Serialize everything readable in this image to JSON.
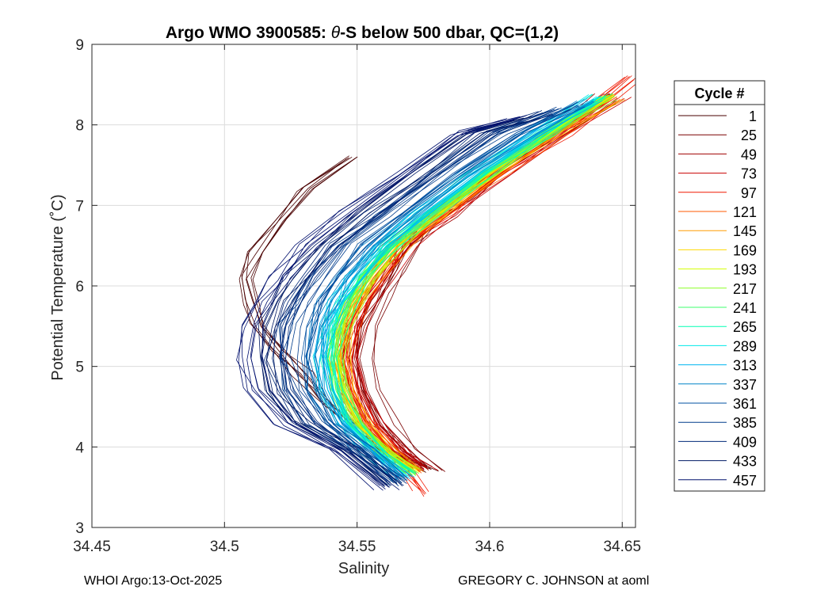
{
  "title_prefix": "Argo WMO 3900585: ",
  "title_theta": "θ",
  "title_suffix": "-S below 500 dbar,  QC=(1,2)",
  "footer_left": "WHOI Argo:13-Oct-2025",
  "footer_right": "GREGORY C. JOHNSON at aoml",
  "chart_data": {
    "type": "line",
    "title": "Argo WMO 3900585: θ-S below 500 dbar,  QC=(1,2)",
    "xlabel": "Salinity",
    "ylabel": "Potential Temperature (˚C)",
    "xlim": [
      34.45,
      34.655
    ],
    "ylim": [
      3,
      9
    ],
    "xticks": [
      34.45,
      34.5,
      34.55,
      34.6,
      34.65
    ],
    "xtick_labels": [
      "34.45",
      "34.5",
      "34.55",
      "34.6",
      "34.65"
    ],
    "yticks": [
      3,
      4,
      5,
      6,
      7,
      8,
      9
    ],
    "ytick_labels": [
      "3",
      "4",
      "5",
      "6",
      "7",
      "8",
      "9"
    ],
    "grid": true,
    "legend_title": "Cycle #",
    "legend_position": "right-outside",
    "series": [
      {
        "name": "1",
        "color": "#4a0000",
        "salinity": [
          34.578,
          34.566,
          34.552,
          34.54,
          34.531,
          34.522,
          34.515,
          34.512,
          34.51,
          34.514,
          34.522,
          34.533,
          34.55
        ],
        "theta": [
          3.72,
          3.9,
          4.2,
          4.55,
          4.9,
          5.2,
          5.5,
          5.8,
          6.1,
          6.4,
          6.8,
          7.2,
          7.6
        ]
      },
      {
        "name": "25",
        "color": "#7a0000",
        "salinity": [
          34.578,
          34.57,
          34.56,
          34.554,
          34.551,
          34.554,
          34.56,
          34.565,
          34.568,
          34.575,
          34.588,
          34.605,
          34.625,
          34.645
        ],
        "theta": [
          3.72,
          3.95,
          4.3,
          4.7,
          5.1,
          5.5,
          5.9,
          6.2,
          6.5,
          6.8,
          7.1,
          7.5,
          7.9,
          8.3
        ]
      },
      {
        "name": "49",
        "color": "#a10000",
        "salinity": [
          34.577,
          34.568,
          34.558,
          34.552,
          34.549,
          34.551,
          34.555,
          34.561,
          34.57,
          34.585,
          34.605,
          34.625,
          34.645
        ],
        "theta": [
          3.73,
          3.95,
          4.3,
          4.7,
          5.1,
          5.5,
          5.8,
          6.1,
          6.5,
          6.9,
          7.4,
          7.9,
          8.35
        ]
      },
      {
        "name": "73",
        "color": "#c80000",
        "salinity": [
          34.576,
          34.566,
          34.556,
          34.55,
          34.548,
          34.55,
          34.554,
          34.56,
          34.57,
          34.585,
          34.605,
          34.627,
          34.648
        ],
        "theta": [
          3.74,
          3.95,
          4.3,
          4.7,
          5.1,
          5.5,
          5.8,
          6.1,
          6.5,
          6.9,
          7.4,
          7.9,
          8.35
        ]
      },
      {
        "name": "97",
        "color": "#f01800",
        "salinity": [
          34.576,
          34.565,
          34.554,
          34.548,
          34.546,
          34.548,
          34.552,
          34.558,
          34.568,
          34.584,
          34.604,
          34.628,
          34.655
        ],
        "theta": [
          3.42,
          3.85,
          4.3,
          4.7,
          5.1,
          5.5,
          5.8,
          6.1,
          6.5,
          6.9,
          7.4,
          7.9,
          8.58
        ]
      },
      {
        "name": "121",
        "color": "#ff5a00",
        "salinity": [
          34.574,
          34.563,
          34.553,
          34.547,
          34.545,
          34.547,
          34.551,
          34.557,
          34.567,
          34.583,
          34.603,
          34.626,
          34.648
        ],
        "theta": [
          3.7,
          3.95,
          4.3,
          4.7,
          5.1,
          5.5,
          5.8,
          6.1,
          6.5,
          6.9,
          7.4,
          7.9,
          8.35
        ]
      },
      {
        "name": "145",
        "color": "#ff9c00",
        "salinity": [
          34.573,
          34.562,
          34.552,
          34.546,
          34.544,
          34.546,
          34.55,
          34.556,
          34.566,
          34.582,
          34.602,
          34.625,
          34.647
        ],
        "theta": [
          3.7,
          3.95,
          4.3,
          4.7,
          5.1,
          5.5,
          5.8,
          6.1,
          6.5,
          6.9,
          7.4,
          7.9,
          8.35
        ]
      },
      {
        "name": "169",
        "color": "#ffd800",
        "salinity": [
          34.572,
          34.561,
          34.551,
          34.545,
          34.543,
          34.545,
          34.549,
          34.555,
          34.565,
          34.581,
          34.601,
          34.624,
          34.646
        ],
        "theta": [
          3.7,
          3.95,
          4.3,
          4.7,
          5.1,
          5.5,
          5.8,
          6.1,
          6.5,
          6.9,
          7.4,
          7.9,
          8.35
        ]
      },
      {
        "name": "193",
        "color": "#d4ff00",
        "salinity": [
          34.572,
          34.56,
          34.55,
          34.544,
          34.542,
          34.544,
          34.548,
          34.554,
          34.564,
          34.58,
          34.6,
          34.623,
          34.645
        ],
        "theta": [
          3.68,
          3.95,
          4.3,
          4.7,
          5.1,
          5.5,
          5.8,
          6.1,
          6.5,
          6.9,
          7.4,
          7.9,
          8.35
        ]
      },
      {
        "name": "217",
        "color": "#8cff26",
        "salinity": [
          34.571,
          34.559,
          34.549,
          34.543,
          34.541,
          34.543,
          34.547,
          34.553,
          34.563,
          34.579,
          34.599,
          34.622,
          34.644
        ],
        "theta": [
          3.68,
          3.95,
          4.3,
          4.7,
          5.1,
          5.5,
          5.8,
          6.1,
          6.5,
          6.9,
          7.4,
          7.9,
          8.35
        ]
      },
      {
        "name": "241",
        "color": "#3cff6e",
        "salinity": [
          34.57,
          34.558,
          34.548,
          34.542,
          34.54,
          34.542,
          34.546,
          34.552,
          34.562,
          34.578,
          34.598,
          34.621,
          34.643
        ],
        "theta": [
          3.66,
          3.95,
          4.3,
          4.7,
          5.1,
          5.5,
          5.8,
          6.1,
          6.5,
          6.9,
          7.4,
          7.9,
          8.35
        ]
      },
      {
        "name": "265",
        "color": "#00ffb4",
        "salinity": [
          34.57,
          34.558,
          34.547,
          34.541,
          34.539,
          34.541,
          34.545,
          34.551,
          34.561,
          34.577,
          34.597,
          34.62,
          34.642
        ],
        "theta": [
          3.66,
          3.95,
          4.3,
          4.7,
          5.1,
          5.5,
          5.8,
          6.1,
          6.5,
          6.9,
          7.4,
          7.9,
          8.35
        ]
      },
      {
        "name": "289",
        "color": "#00e8e8",
        "salinity": [
          34.569,
          34.557,
          34.546,
          34.54,
          34.538,
          34.54,
          34.544,
          34.55,
          34.56,
          34.576,
          34.596,
          34.619,
          34.641
        ],
        "theta": [
          3.64,
          3.95,
          4.3,
          4.7,
          5.1,
          5.5,
          5.8,
          6.1,
          6.5,
          6.9,
          7.4,
          7.9,
          8.35
        ]
      },
      {
        "name": "313",
        "color": "#00b4f0",
        "salinity": [
          34.568,
          34.556,
          34.545,
          34.539,
          34.537,
          34.539,
          34.543,
          34.549,
          34.559,
          34.575,
          34.595,
          34.618,
          34.64
        ],
        "theta": [
          3.62,
          3.95,
          4.3,
          4.7,
          5.1,
          5.5,
          5.8,
          6.1,
          6.5,
          6.9,
          7.4,
          7.9,
          8.3
        ]
      },
      {
        "name": "337",
        "color": "#0084c8",
        "salinity": [
          34.567,
          34.554,
          34.542,
          34.536,
          34.534,
          34.536,
          34.54,
          34.546,
          34.556,
          34.572,
          34.592,
          34.615,
          34.637
        ],
        "theta": [
          3.6,
          3.95,
          4.3,
          4.7,
          5.1,
          5.5,
          5.8,
          6.1,
          6.5,
          6.9,
          7.4,
          7.9,
          8.3
        ]
      },
      {
        "name": "361",
        "color": "#0050a0",
        "salinity": [
          34.566,
          34.552,
          34.538,
          34.531,
          34.529,
          34.531,
          34.535,
          34.541,
          34.551,
          34.567,
          34.587,
          34.61,
          34.632
        ],
        "theta": [
          3.58,
          3.95,
          4.3,
          4.7,
          5.1,
          5.5,
          5.8,
          6.1,
          6.5,
          6.9,
          7.4,
          7.9,
          8.25
        ]
      },
      {
        "name": "385",
        "color": "#003c8c",
        "salinity": [
          34.565,
          34.55,
          34.534,
          34.526,
          34.523,
          34.525,
          34.529,
          34.535,
          34.545,
          34.561,
          34.581,
          34.604,
          34.626
        ],
        "theta": [
          3.55,
          3.95,
          4.3,
          4.7,
          5.1,
          5.5,
          5.8,
          6.1,
          6.5,
          6.9,
          7.4,
          7.9,
          8.2
        ]
      },
      {
        "name": "409",
        "color": "#002878",
        "salinity": [
          34.564,
          34.548,
          34.53,
          34.521,
          34.518,
          34.52,
          34.524,
          34.53,
          34.54,
          34.556,
          34.576,
          34.598,
          34.62
        ],
        "theta": [
          3.55,
          3.95,
          4.3,
          4.7,
          5.1,
          5.5,
          5.8,
          6.1,
          6.5,
          6.9,
          7.4,
          7.9,
          8.15
        ]
      },
      {
        "name": "433",
        "color": "#001a64",
        "salinity": [
          34.563,
          34.546,
          34.527,
          34.517,
          34.514,
          34.516,
          34.52,
          34.526,
          34.536,
          34.552,
          34.572,
          34.594,
          34.616
        ],
        "theta": [
          3.52,
          3.95,
          4.3,
          4.7,
          5.1,
          5.5,
          5.8,
          6.1,
          6.5,
          6.9,
          7.4,
          7.9,
          8.1
        ]
      },
      {
        "name": "457",
        "color": "#00106e",
        "salinity": [
          34.562,
          34.544,
          34.524,
          34.513,
          34.51,
          34.512,
          34.516,
          34.522,
          34.532,
          34.548,
          34.568,
          34.59,
          34.612
        ],
        "theta": [
          3.5,
          3.95,
          4.3,
          4.7,
          5.1,
          5.5,
          5.8,
          6.1,
          6.5,
          6.9,
          7.4,
          7.9,
          8.1
        ]
      }
    ]
  }
}
